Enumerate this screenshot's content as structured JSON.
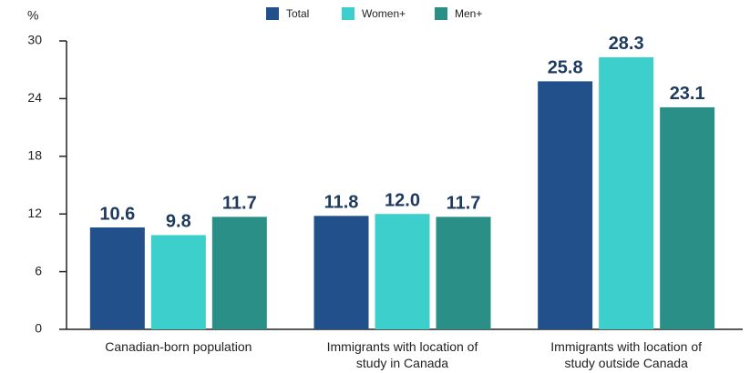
{
  "chart_data": {
    "type": "bar",
    "y_label": "%",
    "categories": [
      "Canadian-born population",
      "Immigrants with location of study in Canada",
      "Immigrants with location of study outside Canada"
    ],
    "series": [
      {
        "name": "Total",
        "color": "#22508a",
        "values": [
          10.6,
          11.8,
          25.8
        ],
        "value_labels": [
          "10.6",
          "11.8",
          "25.8"
        ]
      },
      {
        "name": "Women+",
        "color": "#3dcfcb",
        "values": [
          9.8,
          12.0,
          28.3
        ],
        "value_labels": [
          "9.8",
          "12.0",
          "28.3"
        ]
      },
      {
        "name": "Men+",
        "color": "#2a8f86",
        "values": [
          11.7,
          11.7,
          23.1
        ],
        "value_labels": [
          "11.7",
          "11.7",
          "23.1"
        ]
      }
    ],
    "ylim": [
      0,
      30
    ],
    "yticks": [
      0,
      6,
      12,
      18,
      24,
      30
    ],
    "grid": false,
    "legend": "top"
  }
}
